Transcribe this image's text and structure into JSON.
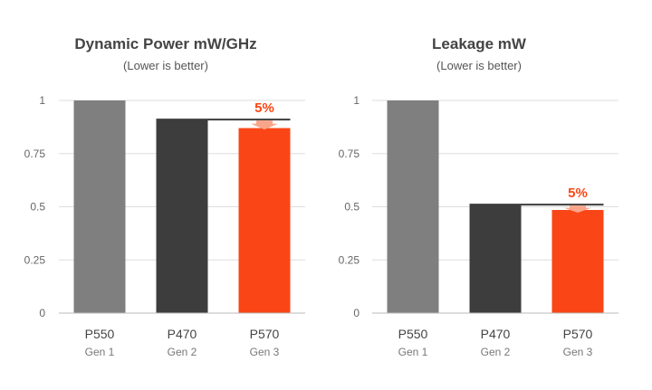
{
  "colors": {
    "gen1": "#7f7f7f",
    "gen2": "#3d3d3d",
    "gen3": "#fa4616",
    "grid": "#dddddd",
    "axis": "#bbbbbb",
    "reference_line": "#3d3d3d",
    "annotation": "#fa4616",
    "annotation_arrow": "#f9a58a"
  },
  "chart_data": [
    {
      "type": "bar",
      "title": "Dynamic Power mW/GHz",
      "subtitle": "(Lower is better)",
      "categories": [
        "P550",
        "P470",
        "P570"
      ],
      "category_sublabels": [
        "Gen 1",
        "Gen 2",
        "Gen 3"
      ],
      "values": [
        1.0,
        0.91,
        0.87
      ],
      "ylim": [
        0,
        1
      ],
      "yticks": [
        0,
        0.25,
        0.5,
        0.75,
        1
      ],
      "ytick_labels": [
        "0",
        "0.25",
        "0.5",
        "0.75",
        "1"
      ],
      "grid": true,
      "annotation": {
        "text": "5%",
        "from_category": "P470",
        "to_category": "P570"
      }
    },
    {
      "type": "bar",
      "title": "Leakage mW",
      "subtitle": "(Lower is better)",
      "categories": [
        "P550",
        "P470",
        "P570"
      ],
      "category_sublabels": [
        "Gen 1",
        "Gen 2",
        "Gen 3"
      ],
      "values": [
        1.0,
        0.51,
        0.485
      ],
      "ylim": [
        0,
        1
      ],
      "yticks": [
        0,
        0.25,
        0.5,
        0.75,
        1
      ],
      "ytick_labels": [
        "0",
        "0.25",
        "0.5",
        "0.75",
        "1"
      ],
      "grid": true,
      "annotation": {
        "text": "5%",
        "from_category": "P470",
        "to_category": "P570"
      }
    }
  ]
}
